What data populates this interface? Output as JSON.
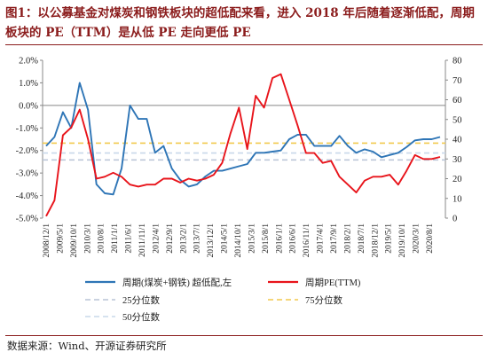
{
  "figure": {
    "title": "图1：以公募基金对煤炭和钢铁板块的超低配来看，进入 2018 年后随着逐渐低配，周期板块的 PE（TTM）是从低 PE 走向更低 PE",
    "source": "数据来源：Wind、开源证券研究所"
  },
  "chart_data": {
    "type": "line",
    "x_labels": [
      "2008/12/1",
      "2009/5/1",
      "2009/10/1",
      "2010/3/1",
      "2010/8/1",
      "2011/1/1",
      "2011/6/1",
      "2011/11/1",
      "2012/4/1",
      "2012/9/1",
      "2013/2/1",
      "2013/7/1",
      "2013/12/1",
      "2014/5/1",
      "2014/10/1",
      "2015/3/1",
      "2015/8/1",
      "2016/1/1",
      "2016/6/1",
      "2016/11/1",
      "2017/4/1",
      "2017/9/1",
      "2018/2/1",
      "2018/7/1",
      "2018/12/1",
      "2019/5/1",
      "2019/10/1",
      "2020/3/1",
      "2020/8/1"
    ],
    "left_axis": {
      "min": -5.0,
      "max": 2.0,
      "ticks": [
        "2.0%",
        "1.0%",
        "0.0%",
        "-1.0%",
        "-2.0%",
        "-3.0%",
        "-4.0%",
        "-5.0%"
      ]
    },
    "right_axis": {
      "min": 0,
      "max": 80,
      "ticks": [
        "80",
        "70",
        "60",
        "50",
        "40",
        "30",
        "20",
        "10",
        "0"
      ]
    },
    "grid": false,
    "series": [
      {
        "name": "周期(煤炭+钢铁) 超低配,左",
        "axis": "left",
        "color": "#2e75b6",
        "values": [
          -1.8,
          -1.4,
          -0.3,
          -1.0,
          1.0,
          -0.2,
          -3.5,
          -3.9,
          -3.95,
          -2.8,
          0.0,
          -0.6,
          -0.6,
          -2.1,
          -1.8,
          -2.8,
          -3.3,
          -3.6,
          -3.5,
          -3.15,
          -2.9,
          -2.9,
          -2.8,
          -2.7,
          -2.6,
          -2.1,
          -2.1,
          -2.05,
          -2.0,
          -1.5,
          -1.3,
          -1.3,
          -1.8,
          -1.8,
          -1.8,
          -1.35,
          -1.8,
          -2.1,
          -1.95,
          -2.05,
          -2.3,
          -2.2,
          -2.1,
          -1.85,
          -1.55,
          -1.5,
          -1.5,
          -1.4
        ]
      },
      {
        "name": "周期PE(TTM)",
        "axis": "right",
        "color": "#e8141b",
        "values": [
          1,
          9,
          42,
          46,
          55,
          40,
          20,
          21,
          23,
          21,
          17,
          16,
          17,
          17,
          20,
          20,
          18,
          20,
          19,
          20,
          22,
          28,
          43,
          56,
          35,
          62,
          56,
          71,
          73,
          60,
          47,
          33,
          33,
          28,
          29,
          21,
          17,
          13,
          19,
          21,
          21,
          22,
          17,
          24,
          32,
          30,
          30,
          31
        ]
      }
    ],
    "reference_lines": [
      {
        "name": "25分位数",
        "value": 29.5,
        "color": "#b8c4d6"
      },
      {
        "name": "75分位数",
        "value": 38.0,
        "color": "#f2c94c"
      },
      {
        "name": "50分位数",
        "value": 33.0,
        "color": "#c9d8ea"
      }
    ],
    "legend_position": "bottom"
  }
}
